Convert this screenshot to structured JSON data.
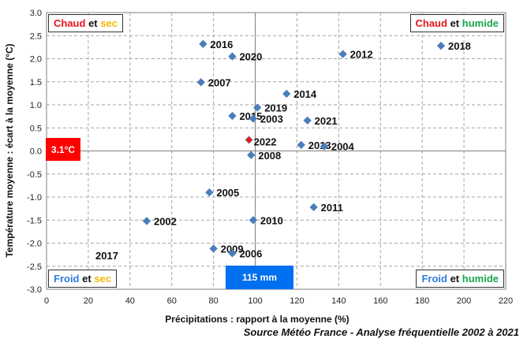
{
  "chart_data": {
    "type": "scatter",
    "xlabel": "Précipitations : rapport à la moyenne (%)",
    "ylabel": "Température moyenne : écart à la moyenne (°C)",
    "xlim": [
      0,
      220
    ],
    "ylim": [
      -3.0,
      3.0
    ],
    "x_ticks": [
      "0",
      "20",
      "40",
      "60",
      "80",
      "100",
      "120",
      "140",
      "160",
      "180",
      "200",
      "220"
    ],
    "y_ticks": [
      "-3.0",
      "-2.5",
      "-2.0",
      "-1.5",
      "-1.0",
      "-0.5",
      "0.0",
      "0.5",
      "1.0",
      "1.5",
      "2.0",
      "2.5",
      "3.0"
    ],
    "grid": true,
    "reference_lines": {
      "x": 100,
      "y": 0
    },
    "marker_color": "#4a7ebb",
    "highlight_color": "#e8141c",
    "points": [
      {
        "label": "2016",
        "x": 75,
        "y": 2.32
      },
      {
        "label": "2020",
        "x": 89,
        "y": 2.05
      },
      {
        "label": "2012",
        "x": 142,
        "y": 2.1
      },
      {
        "label": "2018",
        "x": 189,
        "y": 2.28
      },
      {
        "label": "2007",
        "x": 74,
        "y": 1.49
      },
      {
        "label": "2014",
        "x": 115,
        "y": 1.24
      },
      {
        "label": "2019",
        "x": 101,
        "y": 0.94
      },
      {
        "label": "2015",
        "x": 89,
        "y": 0.76
      },
      {
        "label": "2003",
        "x": 99,
        "y": 0.7
      },
      {
        "label": "2021",
        "x": 125,
        "y": 0.66
      },
      {
        "label": "2013",
        "x": 122,
        "y": 0.13
      },
      {
        "label": "2004",
        "x": 133,
        "y": 0.1
      },
      {
        "label": "2008",
        "x": 98,
        "y": -0.09
      },
      {
        "label": "2005",
        "x": 78,
        "y": -0.9
      },
      {
        "label": "2011",
        "x": 128,
        "y": -1.22
      },
      {
        "label": "2010",
        "x": 99,
        "y": -1.5
      },
      {
        "label": "2002",
        "x": 48,
        "y": -1.52
      },
      {
        "label": "2009",
        "x": 80,
        "y": -2.12
      },
      {
        "label": "2006",
        "x": 89,
        "y": -2.22
      },
      {
        "label": "2022",
        "x": 97,
        "y": 0.24,
        "highlight": true
      }
    ],
    "extra_label": "2017",
    "quadrants": {
      "top_left": {
        "word1": "Chaud",
        "joiner": "et",
        "word2": "sec"
      },
      "top_right": {
        "word1": "Chaud",
        "joiner": "et",
        "word2": "humide"
      },
      "bottom_left": {
        "word1": "Froid",
        "joiner": "et",
        "word2": "sec"
      },
      "bottom_right": {
        "word1": "Froid",
        "joiner": "et",
        "word2": "humide"
      }
    },
    "value_boxes": {
      "temperature": {
        "text": "3.1°C",
        "color": "#ff0000"
      },
      "precipitation": {
        "text": "115 mm",
        "color": "#0070f0"
      }
    },
    "colors": {
      "hot": "#e8141c",
      "cold": "#2f7be0",
      "dry": "#f2b800",
      "wet": "#1aa64a"
    },
    "source": "Source Météo France - Analyse fréquentielle 2002 à 2021"
  }
}
